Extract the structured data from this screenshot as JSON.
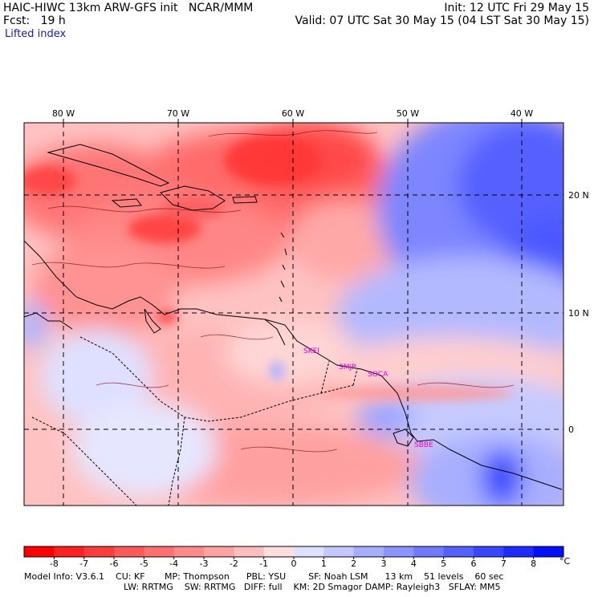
{
  "header": {
    "model_line": "HAIC-HIWC 13km ARW-GFS init   NCAR/MMM",
    "fcst_line": "Fcst:   19 h",
    "field": "Lifted index",
    "init_line": "Init: 12 UTC Fri 29 May 15",
    "valid_line": "Valid: 07 UTC Sat 30 May 15 (04 LST Sat 30 May 15)"
  },
  "map": {
    "lon_labels": [
      "80 W",
      "70 W",
      "60 W",
      "50 W",
      "40 W"
    ],
    "lat_labels": [
      "20 N",
      "10 N",
      "0"
    ],
    "stations": [
      "SKEI",
      "SMJP",
      "SOCA",
      "SBBE"
    ],
    "colors": {
      "strong_unstable": "#ff2a2a",
      "unstable": "#ff9a9a",
      "neutral": "#ffffff",
      "stable": "#9aa6ff",
      "strong_stable": "#1f2bff"
    }
  },
  "colorbar": {
    "ticks": [
      "-8",
      "-7",
      "-6",
      "-5",
      "-4",
      "-3",
      "-2",
      "-1",
      "0",
      "1",
      "2",
      "3",
      "4",
      "5",
      "6",
      "7",
      "8"
    ],
    "unit": "°C",
    "colors": [
      "#ff0000",
      "#ff2020",
      "#ff3c3c",
      "#ff5858",
      "#ff7070",
      "#ff8a8a",
      "#ffa2a2",
      "#ffbdbd",
      "#ffdede",
      "#e0e0ff",
      "#c4c8ff",
      "#a8aeff",
      "#8c94ff",
      "#707aff",
      "#5460ff",
      "#3846ff",
      "#1c2cff",
      "#0010ff"
    ]
  },
  "footer": {
    "line1": "Model Info: V3.6.1    CU: KF       MP: Thompson      PBL: YSU        SF: Noah LSM      13 km    51 levels    60 sec",
    "line2": "LW: RRTMG    SW: RRTMG   DIFF: full    KM: 2D Smagor DAMP: Rayleigh3   SFLAY: MM5"
  }
}
